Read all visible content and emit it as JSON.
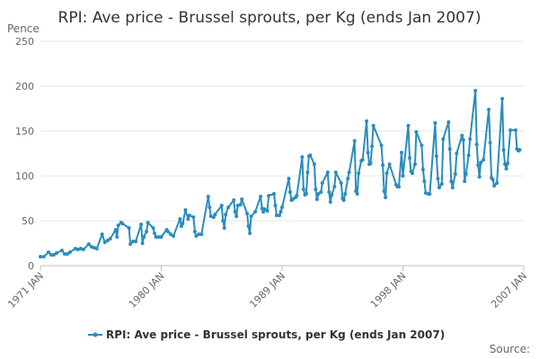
{
  "chart_data": {
    "type": "line",
    "title": "RPI: Ave price - Brussel sprouts, per Kg (ends Jan 2007)",
    "ylabel": "Pence",
    "xlabel": "",
    "ylim": [
      0,
      250
    ],
    "yticks": [
      0,
      50,
      100,
      150,
      200,
      250
    ],
    "xlim": [
      1971.0,
      2007.0
    ],
    "xticks": [
      {
        "label": "1971 JAN",
        "x": 1971.0
      },
      {
        "label": "1980 JAN",
        "x": 1980.0
      },
      {
        "label": "1989 JAN",
        "x": 1989.0
      },
      {
        "label": "1998 JAN",
        "x": 1998.0
      },
      {
        "label": "2007 JAN",
        "x": 2007.0
      }
    ],
    "grid": true,
    "legend_position": "bottom",
    "color": "#2b8cbe",
    "series": [
      {
        "name": "RPI: Ave price - Brussel sprouts, per Kg (ends Jan 2007)",
        "points": [
          [
            1971.0,
            10
          ],
          [
            1971.25,
            10
          ],
          [
            1971.6,
            15
          ],
          [
            1971.8,
            12
          ],
          [
            1972.0,
            12
          ],
          [
            1972.2,
            14
          ],
          [
            1972.6,
            17
          ],
          [
            1972.8,
            13
          ],
          [
            1973.0,
            13
          ],
          [
            1973.2,
            15
          ],
          [
            1973.6,
            19
          ],
          [
            1973.8,
            18
          ],
          [
            1974.0,
            19
          ],
          [
            1974.2,
            18
          ],
          [
            1974.6,
            24
          ],
          [
            1974.8,
            21
          ],
          [
            1975.0,
            20
          ],
          [
            1975.2,
            19
          ],
          [
            1975.6,
            35
          ],
          [
            1975.8,
            26
          ],
          [
            1976.0,
            28
          ],
          [
            1976.2,
            30
          ],
          [
            1976.6,
            40
          ],
          [
            1976.7,
            32
          ],
          [
            1976.8,
            45
          ],
          [
            1977.0,
            48
          ],
          [
            1977.1,
            47
          ],
          [
            1977.6,
            42
          ],
          [
            1977.7,
            24
          ],
          [
            1977.9,
            27
          ],
          [
            1978.1,
            27
          ],
          [
            1978.5,
            46
          ],
          [
            1978.6,
            25
          ],
          [
            1978.7,
            32
          ],
          [
            1978.9,
            38
          ],
          [
            1979.0,
            48
          ],
          [
            1979.4,
            42
          ],
          [
            1979.5,
            36
          ],
          [
            1979.6,
            32
          ],
          [
            1979.8,
            32
          ],
          [
            1980.0,
            32
          ],
          [
            1980.4,
            40
          ],
          [
            1980.5,
            38
          ],
          [
            1980.7,
            35
          ],
          [
            1980.9,
            33
          ],
          [
            1981.4,
            52
          ],
          [
            1981.5,
            44
          ],
          [
            1981.6,
            47
          ],
          [
            1981.8,
            62
          ],
          [
            1982.0,
            52
          ],
          [
            1982.1,
            56
          ],
          [
            1982.4,
            54
          ],
          [
            1982.5,
            38
          ],
          [
            1982.6,
            33
          ],
          [
            1982.8,
            35
          ],
          [
            1983.0,
            35
          ],
          [
            1983.5,
            77
          ],
          [
            1983.6,
            65
          ],
          [
            1983.7,
            55
          ],
          [
            1983.9,
            54
          ],
          [
            1984.0,
            57
          ],
          [
            1984.5,
            67
          ],
          [
            1984.6,
            50
          ],
          [
            1984.7,
            42
          ],
          [
            1984.8,
            57
          ],
          [
            1985.0,
            65
          ],
          [
            1985.4,
            73
          ],
          [
            1985.5,
            60
          ],
          [
            1985.6,
            55
          ],
          [
            1985.7,
            67
          ],
          [
            1985.9,
            68
          ],
          [
            1986.0,
            74
          ],
          [
            1986.4,
            58
          ],
          [
            1986.5,
            44
          ],
          [
            1986.6,
            36
          ],
          [
            1986.7,
            55
          ],
          [
            1987.0,
            60
          ],
          [
            1987.4,
            77
          ],
          [
            1987.5,
            64
          ],
          [
            1987.6,
            60
          ],
          [
            1987.7,
            63
          ],
          [
            1987.9,
            61
          ],
          [
            1988.0,
            78
          ],
          [
            1988.4,
            80
          ],
          [
            1988.5,
            67
          ],
          [
            1988.6,
            56
          ],
          [
            1988.8,
            56
          ],
          [
            1988.9,
            60
          ],
          [
            1989.0,
            65
          ],
          [
            1989.5,
            97
          ],
          [
            1989.6,
            82
          ],
          [
            1989.7,
            73
          ],
          [
            1989.8,
            74
          ],
          [
            1990.0,
            76
          ],
          [
            1990.1,
            78
          ],
          [
            1990.5,
            121
          ],
          [
            1990.6,
            85
          ],
          [
            1990.7,
            79
          ],
          [
            1990.8,
            80
          ],
          [
            1990.9,
            104
          ],
          [
            1991.0,
            122
          ],
          [
            1991.1,
            123
          ],
          [
            1991.4,
            113
          ],
          [
            1991.5,
            85
          ],
          [
            1991.6,
            74
          ],
          [
            1991.7,
            80
          ],
          [
            1991.9,
            82
          ],
          [
            1992.0,
            92
          ],
          [
            1992.4,
            104
          ],
          [
            1992.5,
            82
          ],
          [
            1992.6,
            71
          ],
          [
            1992.7,
            79
          ],
          [
            1992.9,
            88
          ],
          [
            1993.0,
            104
          ],
          [
            1993.4,
            92
          ],
          [
            1993.5,
            75
          ],
          [
            1993.6,
            73
          ],
          [
            1993.7,
            80
          ],
          [
            1993.9,
            97
          ],
          [
            1994.0,
            104
          ],
          [
            1994.4,
            139
          ],
          [
            1994.5,
            83
          ],
          [
            1994.6,
            80
          ],
          [
            1994.7,
            103
          ],
          [
            1994.9,
            117
          ],
          [
            1995.0,
            118
          ],
          [
            1995.3,
            161
          ],
          [
            1995.4,
            126
          ],
          [
            1995.5,
            113
          ],
          [
            1995.6,
            114
          ],
          [
            1995.7,
            133
          ],
          [
            1995.8,
            156
          ],
          [
            1996.4,
            134
          ],
          [
            1996.5,
            112
          ],
          [
            1996.6,
            83
          ],
          [
            1996.7,
            76
          ],
          [
            1996.8,
            103
          ],
          [
            1997.0,
            113
          ],
          [
            1997.5,
            90
          ],
          [
            1997.6,
            88
          ],
          [
            1997.7,
            88
          ],
          [
            1997.9,
            126
          ],
          [
            1998.0,
            100
          ],
          [
            1998.4,
            156
          ],
          [
            1998.5,
            120
          ],
          [
            1998.6,
            105
          ],
          [
            1998.7,
            103
          ],
          [
            1998.9,
            113
          ],
          [
            1999.0,
            149
          ],
          [
            1999.4,
            134
          ],
          [
            1999.5,
            107
          ],
          [
            1999.6,
            94
          ],
          [
            1999.7,
            81
          ],
          [
            1999.9,
            80
          ],
          [
            2000.0,
            80
          ],
          [
            2000.4,
            159
          ],
          [
            2000.5,
            122
          ],
          [
            2000.6,
            97
          ],
          [
            2000.7,
            87
          ],
          [
            2000.9,
            91
          ],
          [
            2001.0,
            141
          ],
          [
            2001.4,
            160
          ],
          [
            2001.5,
            130
          ],
          [
            2001.6,
            94
          ],
          [
            2001.7,
            87
          ],
          [
            2001.9,
            102
          ],
          [
            2002.0,
            125
          ],
          [
            2002.4,
            145
          ],
          [
            2002.5,
            140
          ],
          [
            2002.6,
            94
          ],
          [
            2002.7,
            102
          ],
          [
            2002.9,
            123
          ],
          [
            2003.0,
            141
          ],
          [
            2003.4,
            195
          ],
          [
            2003.5,
            135
          ],
          [
            2003.6,
            112
          ],
          [
            2003.7,
            99
          ],
          [
            2003.8,
            115
          ],
          [
            2004.0,
            118
          ],
          [
            2004.4,
            174
          ],
          [
            2004.5,
            137
          ],
          [
            2004.6,
            98
          ],
          [
            2004.7,
            96
          ],
          [
            2004.8,
            89
          ],
          [
            2005.0,
            92
          ],
          [
            2005.4,
            186
          ],
          [
            2005.5,
            129
          ],
          [
            2005.6,
            113
          ],
          [
            2005.7,
            108
          ],
          [
            2005.8,
            114
          ],
          [
            2006.0,
            151
          ],
          [
            2006.4,
            151
          ],
          [
            2006.5,
            130
          ],
          [
            2006.6,
            128
          ],
          [
            2006.7,
            129
          ]
        ]
      }
    ]
  },
  "legend": {
    "label": "RPI: Ave price - Brussel sprouts, per Kg (ends Jan 2007)"
  },
  "footer": {
    "source_label": "Source:"
  }
}
